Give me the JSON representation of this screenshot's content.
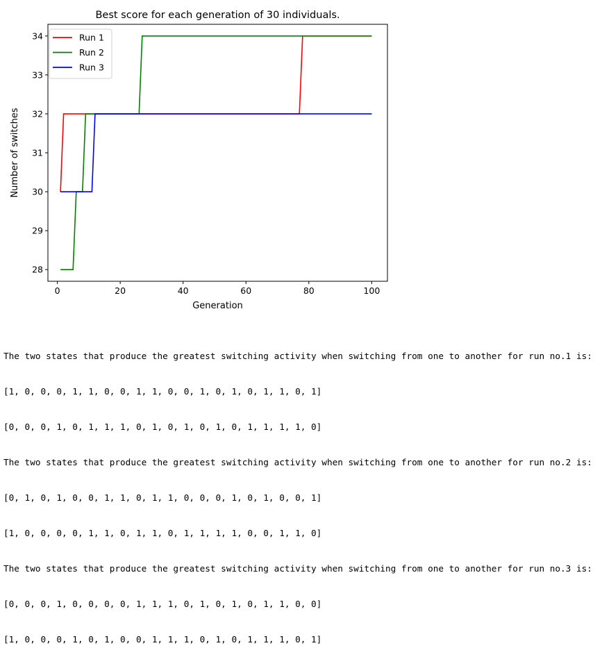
{
  "chart_data": {
    "type": "line",
    "title": "Best score for each generation of 30 individuals.",
    "xlabel": "Generation",
    "ylabel": "Number of switches",
    "xlim": [
      -3,
      105
    ],
    "ylim": [
      27.7,
      34.3
    ],
    "xticks": [
      0,
      20,
      40,
      60,
      80,
      100
    ],
    "yticks": [
      28,
      29,
      30,
      31,
      32,
      33,
      34
    ],
    "grid": false,
    "legend": "top-left",
    "series": [
      {
        "name": "Run 1",
        "color": "#ff0000",
        "x": [
          1,
          2,
          77,
          78,
          100
        ],
        "y": [
          30,
          32,
          32,
          34,
          34
        ]
      },
      {
        "name": "Run 2",
        "color": "#008000",
        "x": [
          1,
          5,
          6,
          8,
          9,
          26,
          27,
          100
        ],
        "y": [
          28,
          28,
          30,
          30,
          32,
          32,
          34,
          34
        ]
      },
      {
        "name": "Run 3",
        "color": "#0000ff",
        "x": [
          1,
          11,
          12,
          100
        ],
        "y": [
          30,
          30,
          32,
          32
        ]
      }
    ]
  },
  "output": {
    "lines": [
      "The two states that produce the greatest switching activity when switching from one to another for run no.1 is:",
      "[1, 0, 0, 0, 1, 1, 0, 0, 1, 1, 0, 0, 1, 0, 1, 0, 1, 1, 0, 1]",
      "[0, 0, 0, 1, 0, 1, 1, 1, 0, 1, 0, 1, 0, 1, 0, 1, 1, 1, 1, 0]",
      "The two states that produce the greatest switching activity when switching from one to another for run no.2 is:",
      "[0, 1, 0, 1, 0, 0, 1, 1, 0, 1, 1, 0, 0, 0, 1, 0, 1, 0, 0, 1]",
      "[1, 0, 0, 0, 0, 1, 1, 0, 1, 1, 0, 1, 1, 1, 1, 0, 0, 1, 1, 0]",
      "The two states that produce the greatest switching activity when switching from one to another for run no.3 is:",
      "[0, 0, 0, 1, 0, 0, 0, 0, 1, 1, 1, 0, 1, 0, 1, 0, 1, 1, 0, 0]",
      "[1, 0, 0, 0, 1, 0, 1, 0, 0, 1, 1, 1, 0, 1, 0, 1, 1, 1, 0, 1]"
    ]
  }
}
